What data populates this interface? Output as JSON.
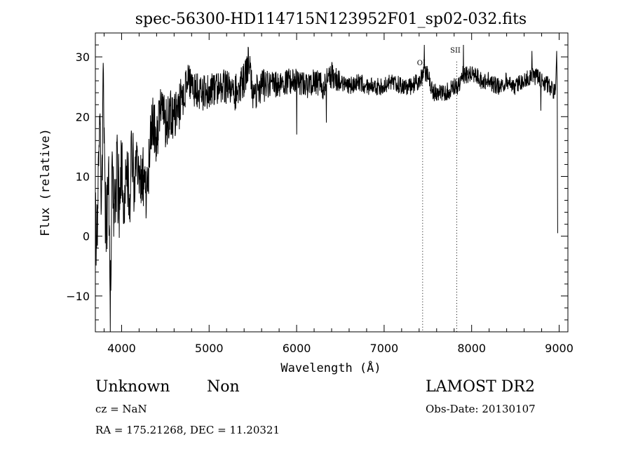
{
  "chart_data": {
    "type": "line",
    "title": "spec-56300-HD114715N123952F01_sp02-032.fits",
    "xlabel": "Wavelength (Å)",
    "ylabel": "Flux (relative)",
    "xlim": [
      3700,
      9100
    ],
    "ylim": [
      -16,
      34
    ],
    "x_ticks": [
      4000,
      5000,
      6000,
      7000,
      8000,
      9000
    ],
    "y_ticks": [
      -10,
      0,
      10,
      20,
      30
    ],
    "grid": false,
    "series": [
      {
        "color": "#000000",
        "anchors": [
          [
            3700,
            4
          ],
          [
            3725,
            -3
          ],
          [
            3750,
            24
          ],
          [
            3770,
            4
          ],
          [
            3790,
            27
          ],
          [
            3810,
            7
          ],
          [
            3830,
            1
          ],
          [
            3850,
            15
          ],
          [
            3870,
            -15
          ],
          [
            3890,
            12
          ],
          [
            3920,
            4
          ],
          [
            3950,
            10
          ],
          [
            3980,
            6
          ],
          [
            4000,
            14
          ],
          [
            4030,
            4
          ],
          [
            4060,
            11
          ],
          [
            4090,
            6
          ],
          [
            4120,
            15
          ],
          [
            4150,
            7
          ],
          [
            4180,
            13
          ],
          [
            4210,
            8
          ],
          [
            4240,
            10
          ],
          [
            4270,
            8
          ],
          [
            4300,
            9
          ],
          [
            4330,
            17
          ],
          [
            4360,
            19
          ],
          [
            4400,
            16
          ],
          [
            4450,
            22
          ],
          [
            4500,
            19
          ],
          [
            4550,
            20
          ],
          [
            4600,
            21
          ],
          [
            4650,
            22
          ],
          [
            4700,
            23
          ],
          [
            4760,
            26
          ],
          [
            4800,
            25
          ],
          [
            4900,
            24
          ],
          [
            5000,
            24
          ],
          [
            5100,
            25
          ],
          [
            5200,
            25
          ],
          [
            5300,
            24
          ],
          [
            5400,
            26
          ],
          [
            5450,
            29
          ],
          [
            5500,
            24
          ],
          [
            5600,
            25
          ],
          [
            5700,
            26
          ],
          [
            5800,
            25
          ],
          [
            5900,
            26
          ],
          [
            6000,
            26
          ],
          [
            6100,
            25
          ],
          [
            6200,
            26
          ],
          [
            6300,
            25
          ],
          [
            6400,
            27
          ],
          [
            6500,
            26
          ],
          [
            6600,
            25
          ],
          [
            6700,
            26
          ],
          [
            6800,
            25
          ],
          [
            6900,
            25
          ],
          [
            7000,
            25
          ],
          [
            7100,
            26
          ],
          [
            7200,
            25
          ],
          [
            7300,
            25
          ],
          [
            7400,
            26
          ],
          [
            7450,
            27
          ],
          [
            7500,
            27
          ],
          [
            7560,
            24
          ],
          [
            7600,
            24
          ],
          [
            7700,
            24
          ],
          [
            7800,
            25
          ],
          [
            7850,
            25
          ],
          [
            7900,
            27
          ],
          [
            7950,
            27
          ],
          [
            8000,
            27
          ],
          [
            8050,
            27
          ],
          [
            8100,
            26
          ],
          [
            8200,
            26
          ],
          [
            8300,
            25
          ],
          [
            8400,
            26
          ],
          [
            8500,
            25
          ],
          [
            8600,
            26
          ],
          [
            8700,
            27
          ],
          [
            8800,
            26
          ],
          [
            8900,
            25
          ],
          [
            8960,
            24
          ]
        ]
      }
    ],
    "tail": [
      [
        8972,
        31
      ],
      [
        8978,
        24
      ],
      [
        8983,
        0.5
      ]
    ],
    "lines": [
      {
        "label": "OI",
        "wavelength": 7440,
        "label_y": 28.6
      },
      {
        "label": "SII",
        "wavelength": 7830,
        "label_y": 30.7
      }
    ]
  },
  "info": {
    "class": "Unknown",
    "subclass": "Non",
    "survey": "LAMOST DR2",
    "cz": "cz = NaN",
    "obs_date": "Obs-Date: 20130107",
    "coords": "RA = 175.21268, DEC =  11.20321"
  }
}
